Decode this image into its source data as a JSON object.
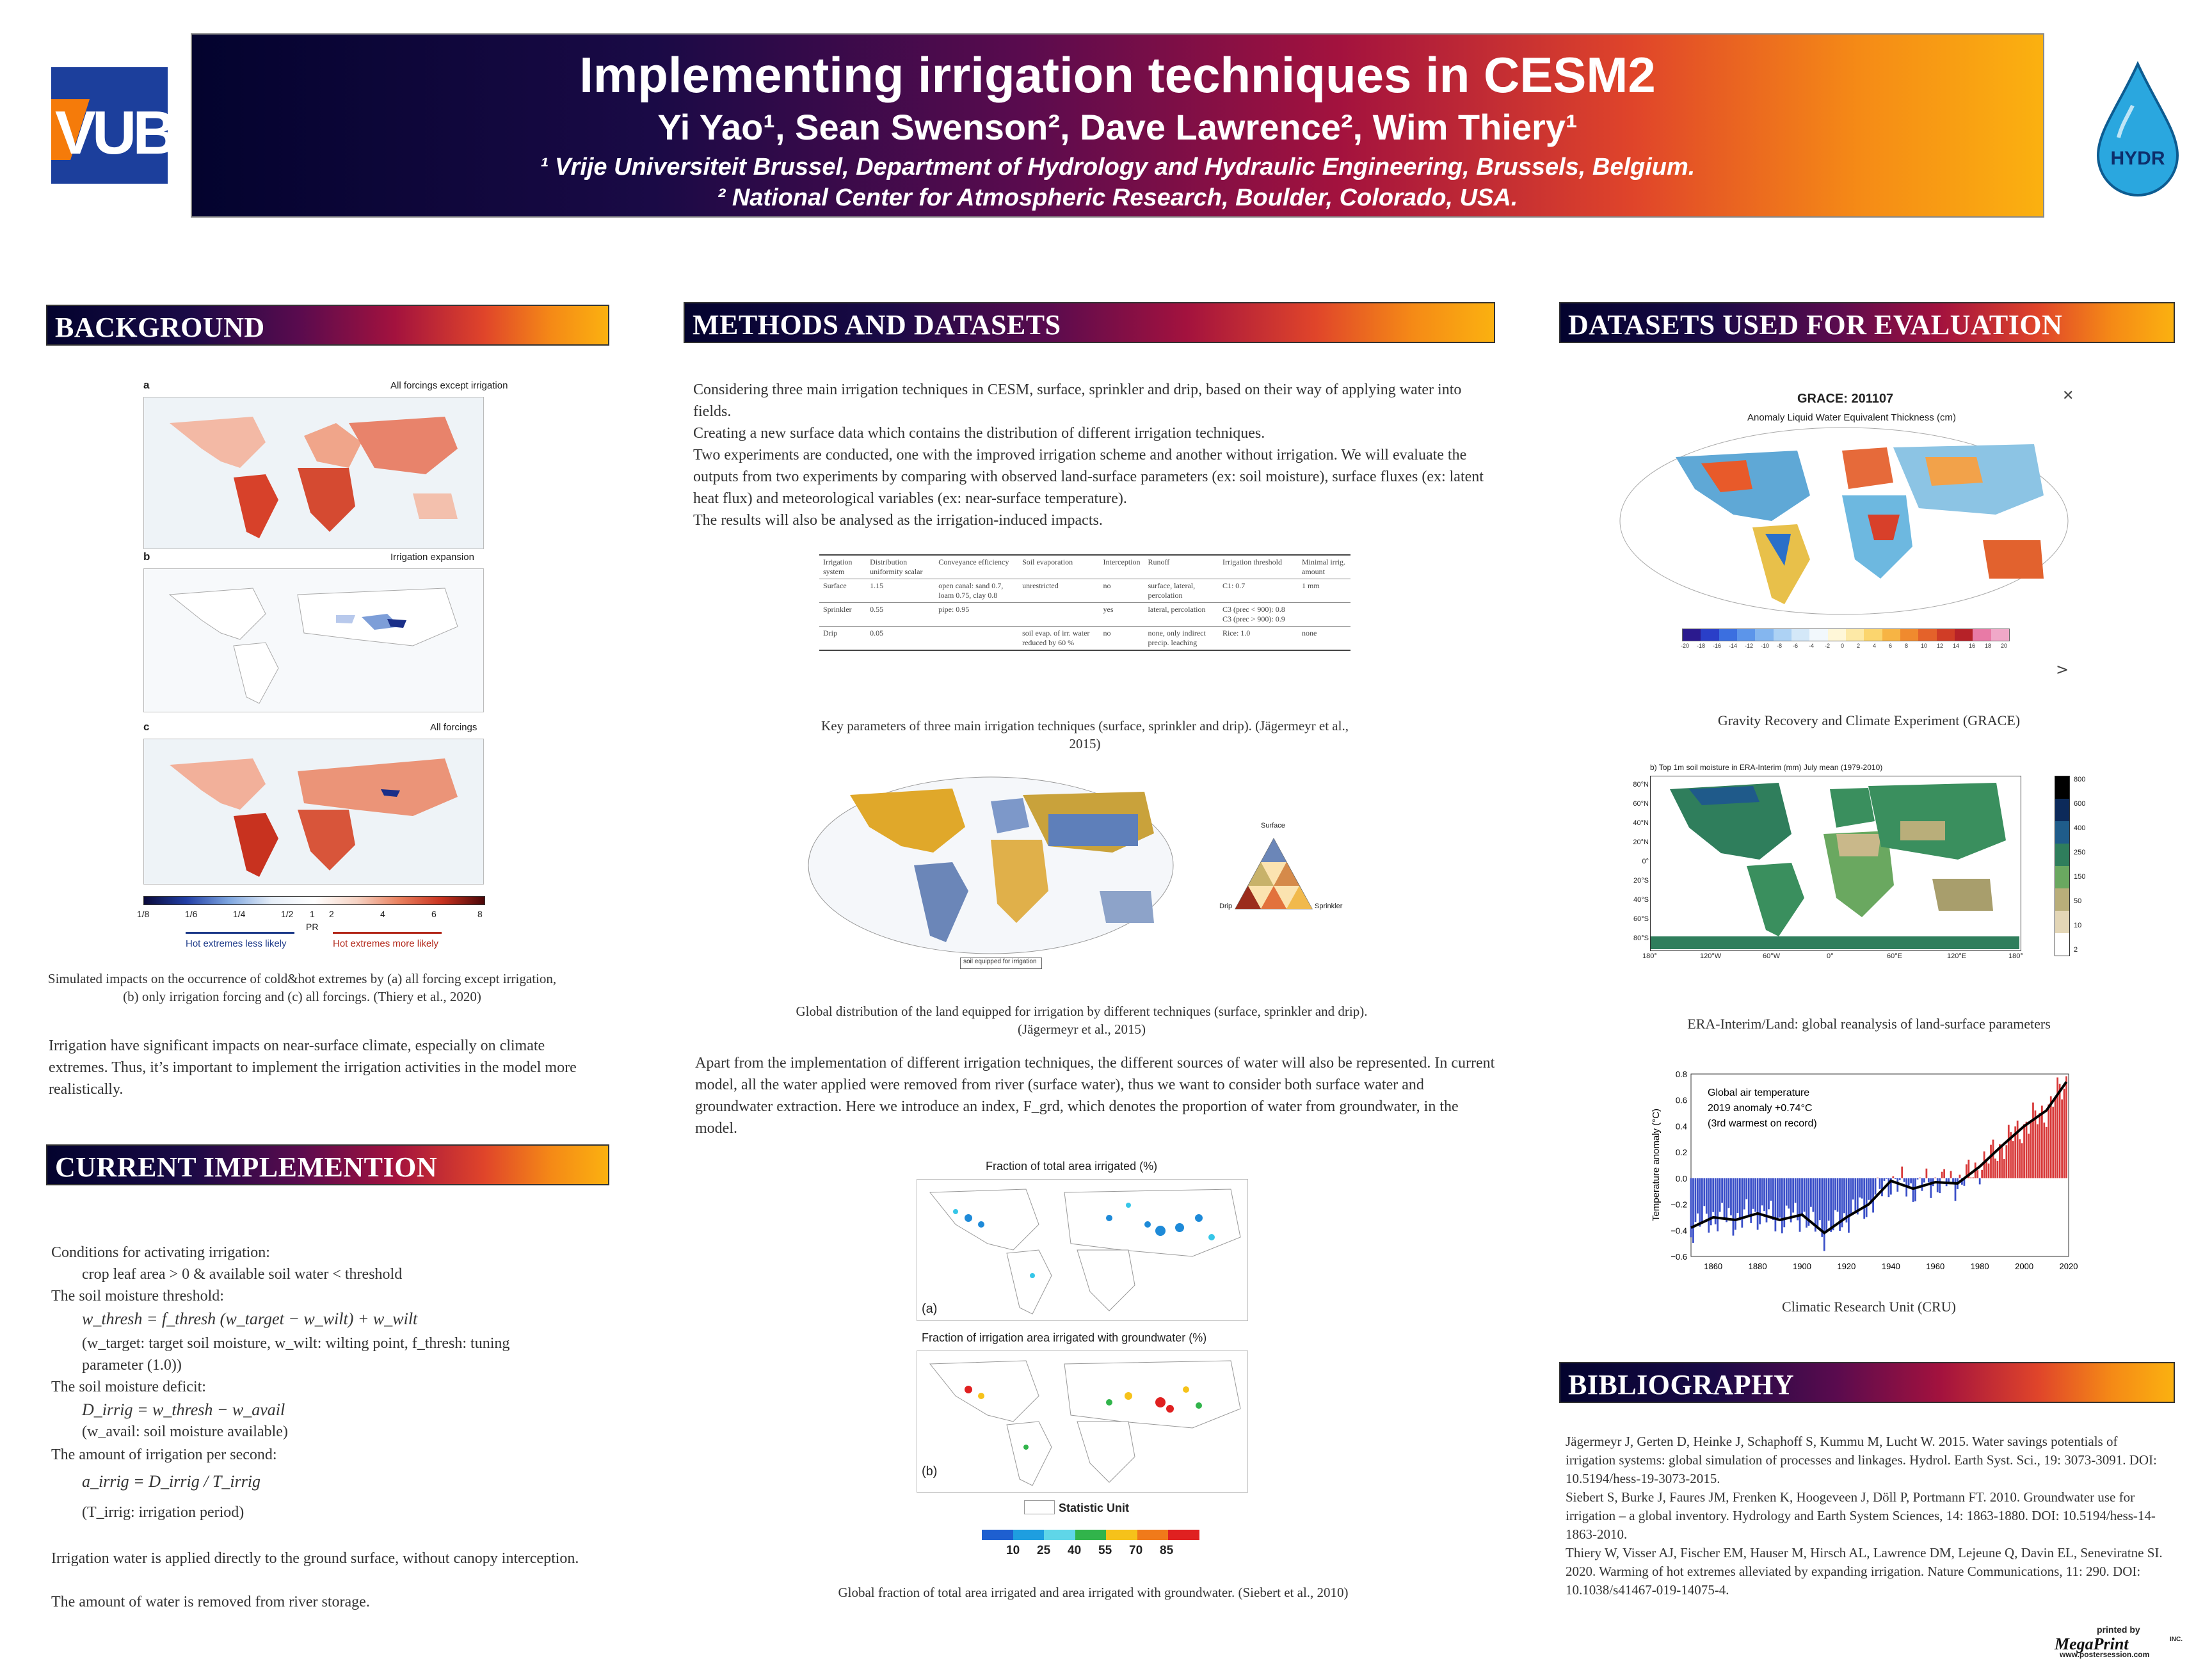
{
  "header": {
    "title": "Implementing irrigation techniques in CESM2",
    "authors": "Yi Yao¹, Sean Swenson², Dave Lawrence², Wim Thiery¹",
    "affil1": "¹ Vrije Universiteit Brussel, Department of Hydrology and Hydraulic Engineering, Brussels, Belgium.",
    "affil2": "² National Center for Atmospheric Research, Boulder, Colorado, USA.",
    "logo_left": "VUB",
    "logo_right": "HYDR"
  },
  "background": {
    "heading": "BACKGROUND",
    "panel_a_letter": "a",
    "panel_a_title": "All forcings except irrigation",
    "panel_b_letter": "b",
    "panel_b_title": "Irrigation expansion",
    "panel_c_letter": "c",
    "panel_c_title": "All forcings",
    "colorbar_ticks": [
      "1/8",
      "1/6",
      "1/4",
      "1/2",
      "1",
      "2",
      "4",
      "6",
      "8"
    ],
    "colorbar_unit": "PR",
    "less_likely": "Hot extremes less likely",
    "more_likely": "Hot extremes more likely",
    "caption": "Simulated impacts on the occurrence of cold&hot extremes by (a) all forcing except irrigation, (b) only irrigation forcing and (c) all forcings. (Thiery et al., 2020)",
    "body": "Irrigation have significant impacts on near-surface climate, especially on climate extremes. Thus, it’s important to implement the irrigation activities in the model more realistically."
  },
  "current": {
    "heading": "CURRENT IMPLEMENTION",
    "l1": "Conditions for activating irrigation:",
    "l2": "crop leaf area > 0 & available soil water < threshold",
    "l3": "The soil moisture threshold:",
    "eq1": "w_thresh = f_thresh (w_target − w_wilt) + w_wilt",
    "l4": "(w_target: target soil moisture, w_wilt: wilting point, f_thresh: tuning parameter (1.0))",
    "l5": "The soil moisture deficit:",
    "eq2": "D_irrig = w_thresh − w_avail",
    "l6": "(w_avail: soil moisture available)",
    "l7": "The amount of irrigation per second:",
    "eq3": "a_irrig = D_irrig / T_irrig",
    "l8": "(T_irrig: irrigation period)",
    "l9": "Irrigation water is applied directly to the ground surface, without canopy interception.",
    "l10": "The amount of water is removed from river storage."
  },
  "methods": {
    "heading": "METHODS AND DATASETS",
    "p1": "Considering three main irrigation techniques in CESM, surface, sprinkler and drip, based on their way of applying water into fields.",
    "p2": "Creating a new surface data which contains the distribution of different irrigation techniques.",
    "p3": "Two experiments are conducted, one with the improved irrigation scheme and another without irrigation. We will evaluate the outputs from two experiments by comparing with observed land-surface parameters (ex: soil moisture), surface fluxes (ex: latent heat flux) and meteorological variables (ex: near-surface temperature).",
    "p4": "The results will also be analysed as the irrigation-induced impacts.",
    "table": {
      "header": [
        "Irrigation system",
        "Distribution uniformity scalar",
        "Conveyance efficiency",
        "Soil evaporation",
        "Interception",
        "Runoff",
        "Irrigation threshold",
        "Minimal irrig. amount"
      ],
      "rows": [
        [
          "Surface",
          "1.15",
          "open canal: sand 0.7, loam 0.75, clay 0.8",
          "unrestricted",
          "no",
          "surface, lateral, percolation",
          "C1: 0.7",
          "1 mm"
        ],
        [
          "Sprinkler",
          "0.55",
          "pipe: 0.95",
          "",
          "yes",
          "lateral, percolation",
          "C3 (prec < 900): 0.8  C3 (prec > 900): 0.9",
          ""
        ],
        [
          "Drip",
          "0.05",
          "",
          "soil evap. of irr. water reduced by 60 %",
          "no",
          "none, only indirect precip. leaching",
          "Rice: 1.0",
          "none"
        ]
      ]
    },
    "table_caption": "Key parameters of three main irrigation techniques (surface, sprinkler and drip). (Jägermeyr et al., 2015)",
    "tech_map_legend": "soil equipped for irrigation",
    "ternary_top": "Surface",
    "ternary_left": "Drip",
    "ternary_right": "Sprinkler",
    "tech_map_caption": "Global distribution of the land equipped for irrigation by different techniques (surface, sprinkler and drip). (Jägermeyr et al., 2015)",
    "p5": "Apart from the implementation of different irrigation techniques, the different sources of water will also be represented. In current model, all the water applied were removed from river (surface water), thus we want to consider both surface water and groundwater extraction. Here we introduce an index, F_grd, which denotes the proportion of water from groundwater, in the model.",
    "fig_a_title": "Fraction of total area irrigated (%)",
    "fig_a_label": "(a)",
    "fig_b_title": "Fraction of irrigation area irrigated with groundwater (%)",
    "fig_b_label": "(b)",
    "statistic_unit": "Statistic Unit",
    "legend_ticks": [
      "10",
      "25",
      "40",
      "55",
      "70",
      "85"
    ],
    "siebert_caption": "Global fraction of total area irrigated and area irrigated with groundwater. (Siebert et al., 2010)"
  },
  "evaluation": {
    "heading": "DATASETS USED FOR EVALUATION",
    "grace_title": "GRACE: 201107",
    "grace_subtitle": "Anomaly Liquid Water Equivalent Thickness (cm)",
    "grace_ticks": [
      "-20",
      "-18",
      "-16",
      "-14",
      "-12",
      "-10",
      "-8",
      "-6",
      "-4",
      "-2",
      "0",
      "2",
      "4",
      "6",
      "8",
      "10",
      "12",
      "14",
      "16",
      "18",
      "20"
    ],
    "grace_caption": "Gravity Recovery and Climate Experiment (GRACE)",
    "era_title": "b) Top 1m soil moisture in ERA-Interim (mm) July mean (1979-2010)",
    "era_lat_ticks": [
      "80°N",
      "60°N",
      "40°N",
      "20°N",
      "0°",
      "20°S",
      "40°S",
      "60°S",
      "80°S"
    ],
    "era_lon_ticks": [
      "180°",
      "120°W",
      "60°W",
      "0°",
      "60°E",
      "120°E",
      "180°"
    ],
    "era_cbar_ticks": [
      "800",
      "600",
      "400",
      "250",
      "150",
      "50",
      "10",
      "2"
    ],
    "era_caption": "ERA-Interim/Land: global reanalysis of land-surface parameters",
    "cru_caption": "Climatic Research Unit (CRU)"
  },
  "chart_data": {
    "type": "bar",
    "annotation_1": "Global air temperature",
    "annotation_2": "2019 anomaly +0.74°C",
    "annotation_3": "(3rd warmest on record)",
    "ylabel": "Temperature anomaly (°C)",
    "xlabel": "",
    "xlim": [
      1850,
      2020
    ],
    "ylim": [
      -0.6,
      0.8
    ],
    "x_ticks": [
      "1860",
      "1880",
      "1900",
      "1920",
      "1940",
      "1960",
      "1980",
      "2000",
      "2020"
    ],
    "y_ticks": [
      "0.8",
      "0.6",
      "0.4",
      "0.2",
      "0.0",
      "−0.2",
      "−0.4",
      "−0.6"
    ],
    "smoothed_line": [
      [
        1850,
        -0.38
      ],
      [
        1860,
        -0.3
      ],
      [
        1870,
        -0.32
      ],
      [
        1880,
        -0.27
      ],
      [
        1890,
        -0.32
      ],
      [
        1900,
        -0.28
      ],
      [
        1910,
        -0.42
      ],
      [
        1920,
        -0.3
      ],
      [
        1930,
        -0.2
      ],
      [
        1940,
        -0.02
      ],
      [
        1950,
        -0.08
      ],
      [
        1960,
        -0.03
      ],
      [
        1970,
        -0.04
      ],
      [
        1980,
        0.09
      ],
      [
        1990,
        0.25
      ],
      [
        2000,
        0.4
      ],
      [
        2010,
        0.52
      ],
      [
        2019,
        0.74
      ]
    ]
  },
  "bibliography": {
    "heading": "BIBLIOGRAPHY",
    "ref1": "Jägermeyr J, Gerten D, Heinke J, Schaphoff S, Kummu M, Lucht W. 2015. Water savings potentials of irrigation systems: global simulation of processes and linkages. Hydrol. Earth Syst. Sci., 19: 3073-3091. DOI: 10.5194/hess-19-3073-2015.",
    "ref2": "Siebert S, Burke J, Faures JM, Frenken K, Hoogeveen J, Döll P, Portmann FT. 2010. Groundwater use for irrigation – a global inventory. Hydrology and Earth System Sciences, 14: 1863-1880. DOI: 10.5194/hess-14-1863-2010.",
    "ref3": "Thiery W, Visser AJ, Fischer EM, Hauser M, Hirsch AL, Lawrence DM, Lejeune Q, Davin EL, Seneviratne SI. 2020. Warming of hot extremes alleviated by expanding irrigation. Nature Communications, 11: 290. DOI: 10.1038/s41467-019-14075-4."
  },
  "footer": {
    "printed_by": "printed by",
    "brand": "MegaPrint",
    "inc": "INC.",
    "url": "www.postersession.com"
  },
  "colors": {
    "header_left": "#03032e",
    "header_right": "#fbb110",
    "accent_blue": "#1c3f9c"
  }
}
